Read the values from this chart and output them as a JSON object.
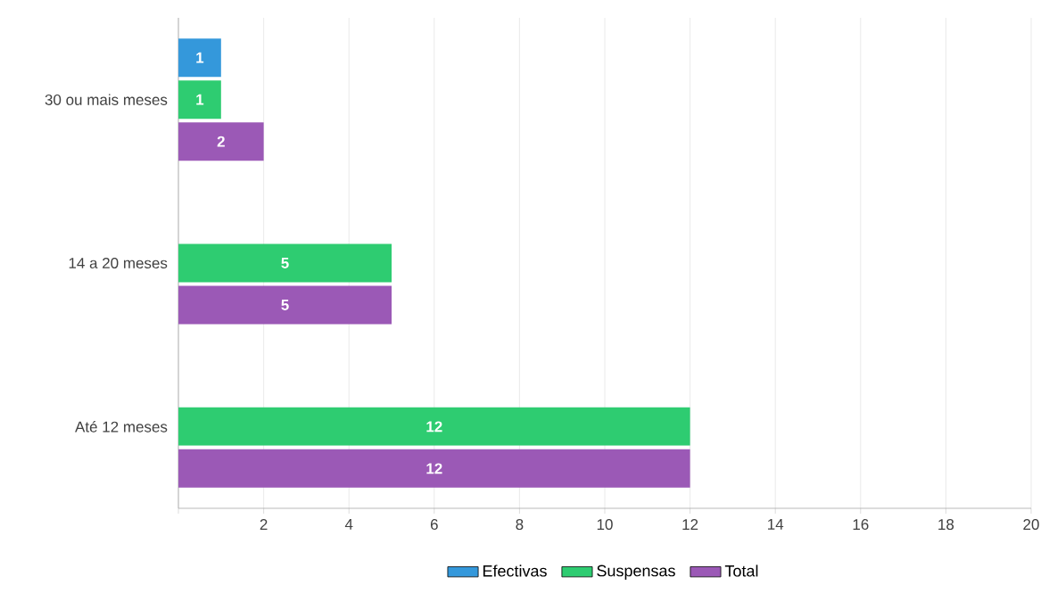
{
  "chart_data": {
    "type": "bar",
    "orientation": "horizontal",
    "categories": [
      "30 ou mais meses",
      "14 a 20 meses",
      "Até 12 meses"
    ],
    "series": [
      {
        "name": "Efectivas",
        "color": "#3498db",
        "values": [
          1,
          0,
          0
        ],
        "value_labels": [
          "1",
          null,
          null
        ]
      },
      {
        "name": "Suspensas",
        "color": "#2ecc71",
        "values": [
          1,
          5,
          12
        ],
        "value_labels": [
          "1",
          "5",
          "12"
        ]
      },
      {
        "name": "Total",
        "color": "#9b59b6",
        "values": [
          2,
          5,
          12
        ],
        "value_labels": [
          "2",
          "5",
          "12"
        ]
      }
    ],
    "xlim": [
      0,
      20
    ],
    "xticks": [
      {
        "value": 0,
        "label": null
      },
      2,
      4,
      6,
      8,
      10,
      12,
      14,
      16,
      18,
      20
    ],
    "grid": "x",
    "legend": "bottom"
  }
}
